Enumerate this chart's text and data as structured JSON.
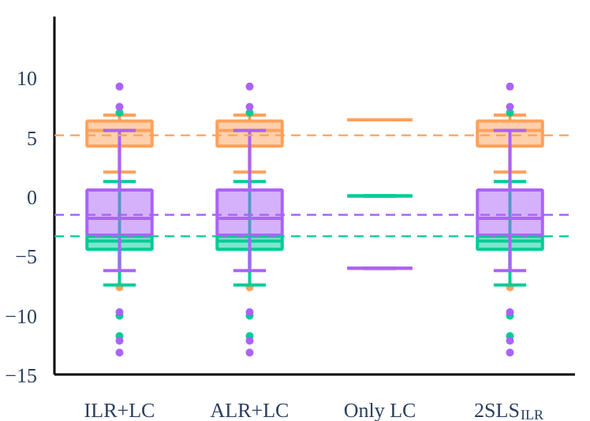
{
  "chart_data": {
    "type": "box",
    "categories": [
      "ILR+LC",
      "ALR+LC",
      "Only LC",
      "2SLS$_{ILR}$"
    ],
    "series": [
      {
        "color": "#ffa15a",
        "boxes": [
          {
            "low": 2.1,
            "q1": 4.3,
            "median": 5.6,
            "q3": 6.4,
            "high": 6.9,
            "outliers": [
              -7.6
            ]
          },
          {
            "low": 2.1,
            "q1": 4.3,
            "median": 5.6,
            "q3": 6.4,
            "high": 6.9,
            "outliers": [
              -7.6
            ]
          },
          {
            "low": 6.5,
            "q1": 6.5,
            "median": 6.5,
            "q3": 6.5,
            "high": 6.5
          },
          {
            "low": 2.1,
            "q1": 4.3,
            "median": 5.6,
            "q3": 6.4,
            "high": 6.9,
            "outliers": [
              -7.6
            ]
          }
        ]
      },
      {
        "color": "#00cc96",
        "boxes": [
          {
            "low": -7.4,
            "q1": -4.4,
            "median": -3.7,
            "q3": -3.3,
            "high": 1.3,
            "outliers": [
              7.1,
              -10.0,
              -11.7
            ]
          },
          {
            "low": -7.4,
            "q1": -4.4,
            "median": -3.7,
            "q3": -3.3,
            "high": 1.3,
            "outliers": [
              7.1,
              -10.0,
              -11.7
            ]
          },
          {
            "low": 0.1,
            "q1": 0.1,
            "median": 0.1,
            "q3": 0.1,
            "high": 0.1
          },
          {
            "low": -7.4,
            "q1": -4.4,
            "median": -3.7,
            "q3": -3.3,
            "high": 1.3,
            "outliers": [
              7.1,
              -10.0,
              -11.7
            ]
          }
        ]
      },
      {
        "color": "#ab63fa",
        "boxes": [
          {
            "low": -6.2,
            "q1": -3.2,
            "median": -1.8,
            "q3": 0.6,
            "high": 5.6,
            "outliers": [
              9.3,
              7.6,
              -9.7,
              -12.1,
              -13.1
            ]
          },
          {
            "low": -6.2,
            "q1": -3.2,
            "median": -1.8,
            "q3": 0.6,
            "high": 5.6,
            "outliers": [
              9.3,
              7.6,
              -9.7,
              -12.1,
              -13.1
            ]
          },
          {
            "low": -6.0,
            "q1": -6.0,
            "median": -6.0,
            "q3": -6.0,
            "high": -6.0
          },
          {
            "low": -6.2,
            "q1": -3.2,
            "median": -1.8,
            "q3": 0.6,
            "high": 5.6,
            "outliers": [
              9.3,
              7.6,
              -9.7,
              -12.1,
              -13.1
            ]
          }
        ]
      }
    ],
    "ylim": [
      -15,
      15.2
    ],
    "yticks": [
      {
        "value": -15,
        "label": "−15"
      },
      {
        "value": -10,
        "label": "−10"
      },
      {
        "value": -5,
        "label": "−5"
      },
      0,
      5,
      10
    ],
    "ref_lines": [
      {
        "axis": "y",
        "value": 5.2,
        "color": "#ffa15a",
        "line_style": "dashed"
      },
      {
        "axis": "y",
        "value": -1.5,
        "color": "#ab63fa",
        "line_style": "dashed"
      },
      {
        "axis": "y",
        "value": -3.3,
        "color": "#00cc96",
        "line_style": "dashed"
      }
    ],
    "grid": false
  }
}
